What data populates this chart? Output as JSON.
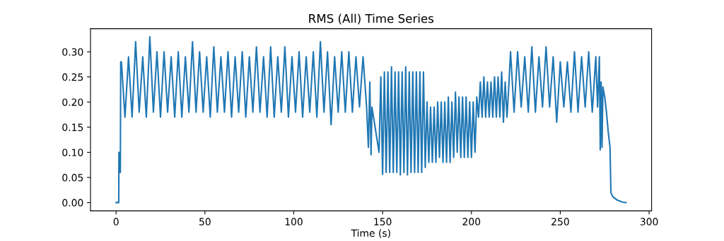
{
  "chart_data": {
    "type": "line",
    "title": "RMS (All) Time Series",
    "xlabel": "Time (s)",
    "xlim": [
      -14.4,
      301.4
    ],
    "ylim": [
      -0.0165,
      0.346
    ],
    "xticks": [
      0,
      50,
      100,
      150,
      200,
      250,
      300
    ],
    "yticks": [
      {
        "value": 0,
        "label": "0.00"
      },
      {
        "value": 0.05,
        "label": "0.05"
      },
      {
        "value": 0.1,
        "label": "0.10"
      },
      {
        "value": 0.15,
        "label": "0.15"
      },
      {
        "value": 0.2,
        "label": "0.20"
      },
      {
        "value": 0.25,
        "label": "0.25"
      },
      {
        "value": 0.3,
        "label": "0.30"
      }
    ],
    "grid": false,
    "marker": "none",
    "line_style": "solid",
    "series": [
      {
        "color": "#1f77b4",
        "x": [
          0,
          1.5,
          1.6,
          1.9,
          2.2,
          2.4,
          2.6,
          3,
          5,
          7,
          9,
          11,
          13,
          15,
          17,
          19,
          21,
          23,
          25,
          27,
          29,
          31,
          33,
          35,
          37,
          39,
          41,
          43,
          45,
          47,
          49,
          51,
          53,
          55,
          57,
          59,
          61,
          63,
          65,
          67,
          69,
          71,
          73,
          75,
          77,
          79,
          81,
          83,
          85,
          87,
          89,
          91,
          93,
          95,
          97,
          99,
          101,
          103,
          105,
          107,
          109,
          111,
          113,
          115,
          117,
          119,
          121,
          123,
          125,
          127,
          129,
          131,
          133,
          135,
          137,
          139,
          141,
          142,
          142.8,
          143.5,
          144,
          148,
          149,
          150,
          151,
          152,
          153,
          154,
          155,
          156,
          157,
          158,
          159,
          160,
          161,
          162,
          163,
          164,
          165,
          166,
          167,
          168,
          169,
          170,
          171,
          172,
          173,
          174,
          175,
          176,
          177,
          178,
          179,
          180,
          181,
          182,
          183,
          184,
          185,
          186,
          187,
          188,
          189,
          190,
          191,
          192,
          193,
          194,
          195,
          196,
          197,
          198,
          199,
          200,
          201,
          202,
          203,
          204,
          205,
          206,
          207,
          208,
          209,
          210,
          211,
          212,
          213,
          214,
          215,
          216,
          217,
          218,
          219,
          220,
          221,
          222,
          224,
          226,
          228,
          230,
          232,
          234,
          236,
          238,
          240,
          242,
          244,
          246,
          248,
          250,
          252,
          254,
          256,
          258,
          260,
          262,
          264,
          266,
          268,
          270,
          271,
          272,
          272.5,
          273,
          273.5,
          274,
          275,
          276,
          277,
          278,
          278.5,
          279.5,
          282,
          285,
          287
        ],
        "values": [
          0,
          0,
          0.1,
          0.06,
          0.1,
          0.06,
          0.28,
          0.28,
          0.17,
          0.29,
          0.17,
          0.32,
          0.18,
          0.29,
          0.17,
          0.33,
          0.18,
          0.3,
          0.17,
          0.3,
          0.18,
          0.29,
          0.17,
          0.3,
          0.17,
          0.29,
          0.18,
          0.32,
          0.18,
          0.3,
          0.18,
          0.29,
          0.17,
          0.31,
          0.18,
          0.29,
          0.18,
          0.3,
          0.17,
          0.29,
          0.18,
          0.3,
          0.17,
          0.29,
          0.18,
          0.31,
          0.18,
          0.29,
          0.17,
          0.31,
          0.17,
          0.29,
          0.18,
          0.31,
          0.17,
          0.29,
          0.18,
          0.3,
          0.17,
          0.29,
          0.18,
          0.3,
          0.17,
          0.32,
          0.18,
          0.3,
          0.155,
          0.29,
          0.18,
          0.3,
          0.18,
          0.3,
          0.18,
          0.29,
          0.19,
          0.29,
          0.19,
          0.11,
          0.24,
          0.095,
          0.19,
          0.1,
          0.25,
          0.056,
          0.26,
          0.06,
          0.26,
          0.06,
          0.27,
          0.06,
          0.26,
          0.06,
          0.26,
          0.055,
          0.26,
          0.06,
          0.27,
          0.055,
          0.26,
          0.06,
          0.26,
          0.06,
          0.26,
          0.06,
          0.26,
          0.06,
          0.26,
          0.07,
          0.2,
          0.08,
          0.19,
          0.08,
          0.19,
          0.08,
          0.2,
          0.09,
          0.2,
          0.08,
          0.2,
          0.08,
          0.21,
          0.08,
          0.2,
          0.09,
          0.22,
          0.1,
          0.21,
          0.09,
          0.21,
          0.09,
          0.21,
          0.09,
          0.2,
          0.09,
          0.2,
          0.1,
          0.21,
          0.17,
          0.24,
          0.17,
          0.25,
          0.17,
          0.24,
          0.17,
          0.24,
          0.17,
          0.25,
          0.17,
          0.25,
          0.17,
          0.26,
          0.16,
          0.24,
          0.17,
          0.23,
          0.3,
          0.18,
          0.3,
          0.19,
          0.29,
          0.18,
          0.31,
          0.18,
          0.29,
          0.19,
          0.31,
          0.19,
          0.29,
          0.16,
          0.28,
          0.19,
          0.28,
          0.18,
          0.3,
          0.18,
          0.29,
          0.19,
          0.3,
          0.18,
          0.29,
          0.19,
          0.29,
          0.105,
          0.24,
          0.11,
          0.23,
          0.21,
          0.18,
          0.14,
          0.11,
          0.02,
          0.012,
          0.005,
          0.001,
          0
        ]
      }
    ]
  }
}
